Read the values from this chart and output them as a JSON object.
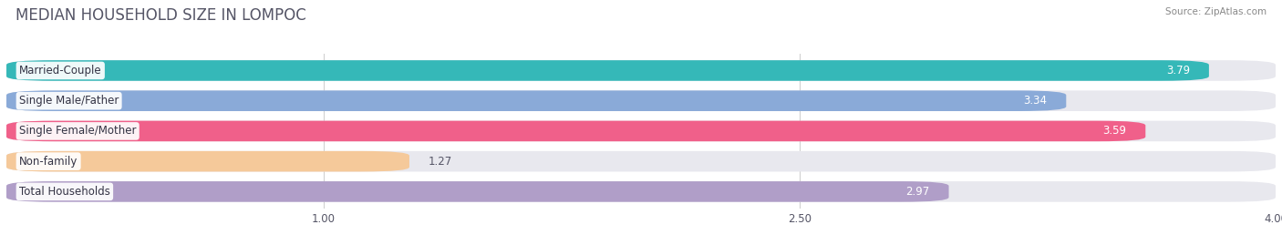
{
  "title": "MEDIAN HOUSEHOLD SIZE IN LOMPOC",
  "source": "Source: ZipAtlas.com",
  "categories": [
    "Married-Couple",
    "Single Male/Father",
    "Single Female/Mother",
    "Non-family",
    "Total Households"
  ],
  "values": [
    3.79,
    3.34,
    3.59,
    1.27,
    2.97
  ],
  "bar_colors": [
    "#35b8b8",
    "#8aaad8",
    "#f0608a",
    "#f5c99a",
    "#b09ec8"
  ],
  "xlim_data": [
    0,
    4.0
  ],
  "xticks": [
    1.0,
    2.5,
    4.0
  ],
  "background_color": "#ffffff",
  "bar_bg_color": "#e8e8ee",
  "title_fontsize": 12,
  "label_fontsize": 8.5,
  "value_fontsize": 8.5,
  "bar_height": 0.68,
  "title_color": "#555566"
}
